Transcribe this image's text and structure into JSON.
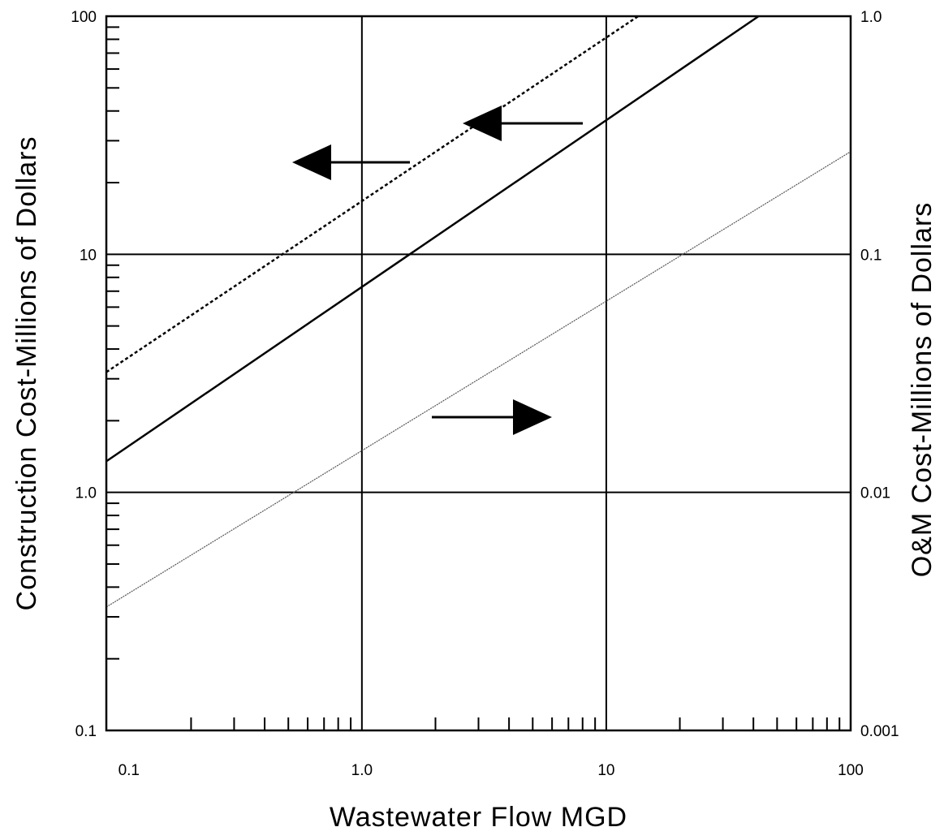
{
  "chart_data": {
    "type": "line",
    "x_scale": "log",
    "y_scale": "log",
    "y2_scale": "log",
    "xlabel": "Wastewater Flow MGD",
    "ylabel": "Construction Cost-Millions of Dollars",
    "y2label": "O&M Cost-Millions of Dollars",
    "xlim": [
      0.09,
      100
    ],
    "ylim": [
      0.1,
      100
    ],
    "y2lim": [
      0.001,
      1.0
    ],
    "x_tick_labels": [
      {
        "value": 0.1,
        "label": "0.1"
      },
      {
        "value": 1,
        "label": "1.0"
      },
      {
        "value": 10,
        "label": "10"
      },
      {
        "value": 100,
        "label": "100"
      }
    ],
    "y_tick_labels": [
      {
        "value": 0.1,
        "label": "0.1"
      },
      {
        "value": 1,
        "label": "1.0"
      },
      {
        "value": 10,
        "label": "10"
      },
      {
        "value": 100,
        "label": "100"
      }
    ],
    "y2_tick_labels": [
      {
        "value": 0.001,
        "label": "0.001"
      },
      {
        "value": 0.01,
        "label": "0.01"
      },
      {
        "value": 0.1,
        "label": "0.1"
      },
      {
        "value": 1.0,
        "label": "1.0"
      }
    ],
    "grid": "major decades",
    "series": [
      {
        "axis": "left",
        "style": "dashed",
        "color": "#000000",
        "x": [
          0.09,
          13.5
        ],
        "y": [
          3.2,
          100
        ]
      },
      {
        "axis": "left",
        "style": "solid",
        "color": "#000000",
        "x": [
          0.09,
          42
        ],
        "y": [
          1.35,
          100
        ]
      },
      {
        "axis": "right",
        "style": "thin",
        "color": "#555555",
        "x": [
          0.09,
          100
        ],
        "y": [
          0.0033,
          0.27
        ]
      }
    ],
    "annotations": [
      {
        "type": "arrow",
        "direction": "left",
        "refers_to": "series 1 (left axis)"
      },
      {
        "type": "arrow",
        "direction": "left",
        "refers_to": "series 2 (left axis)"
      },
      {
        "type": "arrow",
        "direction": "right",
        "refers_to": "series 3 (right axis)"
      }
    ]
  }
}
